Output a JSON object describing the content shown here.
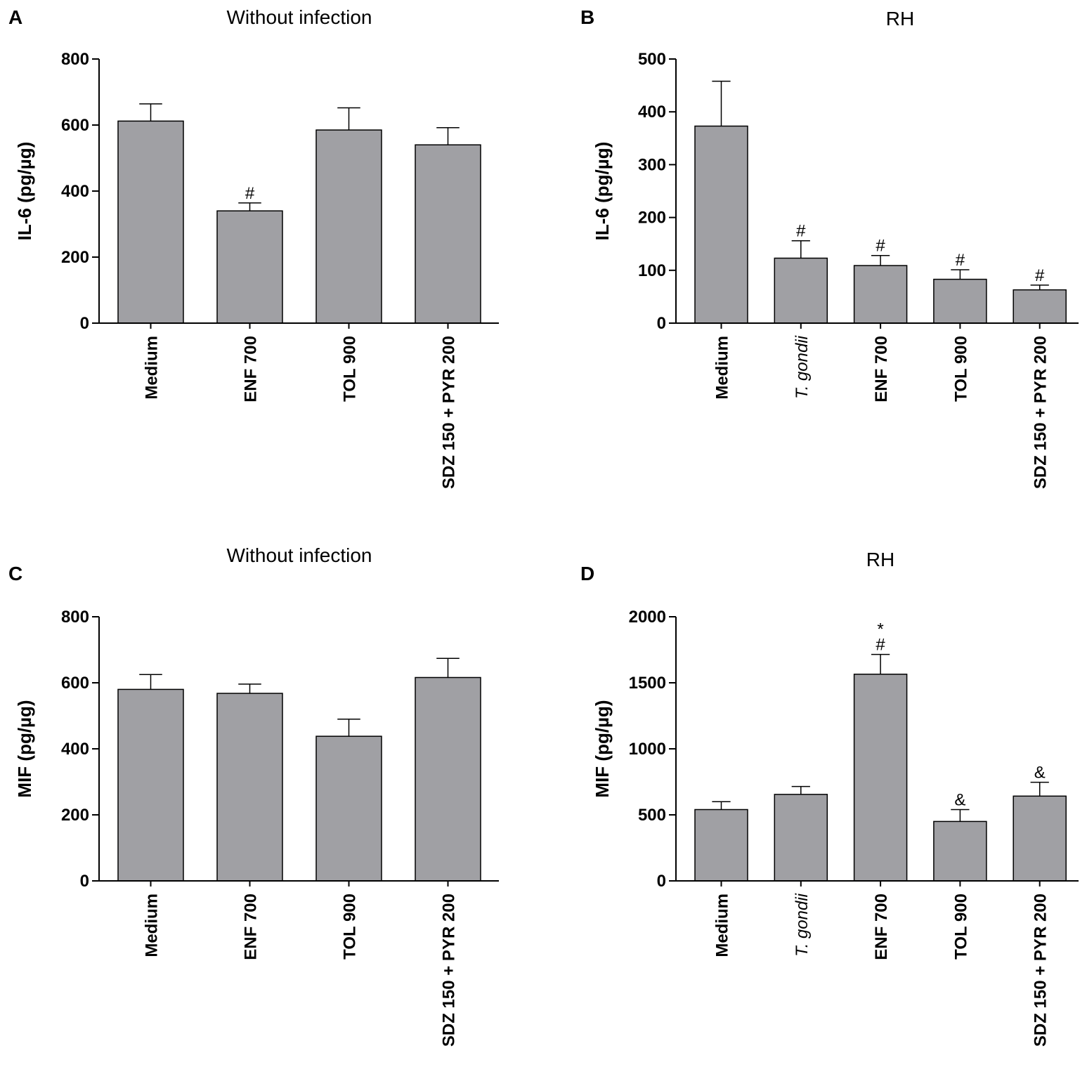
{
  "chart_data": [
    {
      "panel": "A",
      "type": "bar",
      "title": "Without infection",
      "ylabel": "IL-6 (pg/µg)",
      "ylim": [
        0,
        800
      ],
      "yticks": [
        0,
        200,
        400,
        600,
        800
      ],
      "categories": [
        "Medium",
        "ENF 700",
        "TOL 900",
        "SDZ 150 + PYR 200"
      ],
      "italic_categories": [],
      "values": [
        612,
        340,
        585,
        540
      ],
      "errors": [
        52,
        24,
        67,
        52
      ],
      "annotations": [
        "",
        "#",
        "",
        ""
      ],
      "bar_color": "#a0a0a4"
    },
    {
      "panel": "B",
      "type": "bar",
      "title": "RH",
      "ylabel": "IL-6 (pg/µg)",
      "ylim": [
        0,
        500
      ],
      "yticks": [
        0,
        100,
        200,
        300,
        400,
        500
      ],
      "categories": [
        "Medium",
        "T. gondii",
        "ENF 700",
        "TOL 900",
        "SDZ 150 + PYR 200"
      ],
      "italic_categories": [
        1
      ],
      "values": [
        373,
        123,
        109,
        83,
        63
      ],
      "errors": [
        85,
        33,
        19,
        18,
        9
      ],
      "annotations": [
        "",
        "#",
        "#",
        "#",
        "#"
      ],
      "bar_color": "#a0a0a4"
    },
    {
      "panel": "C",
      "type": "bar",
      "title": "Without infection",
      "ylabel": "MIF (pg/µg)",
      "ylim": [
        0,
        800
      ],
      "yticks": [
        0,
        200,
        400,
        600,
        800
      ],
      "categories": [
        "Medium",
        "ENF 700",
        "TOL 900",
        "SDZ 150 + PYR 200"
      ],
      "italic_categories": [],
      "values": [
        580,
        568,
        438,
        616
      ],
      "errors": [
        45,
        28,
        52,
        58
      ],
      "annotations": [
        "",
        "",
        "",
        ""
      ],
      "bar_color": "#a0a0a4"
    },
    {
      "panel": "D",
      "type": "bar",
      "title": "RH",
      "ylabel": "MIF (pg/µg)",
      "ylim": [
        0,
        2000
      ],
      "yticks": [
        0,
        500,
        1000,
        1500,
        2000
      ],
      "categories": [
        "Medium",
        "T. gondii",
        "ENF 700",
        "TOL 900",
        "SDZ 150 + PYR 200"
      ],
      "italic_categories": [
        1
      ],
      "values": [
        540,
        655,
        1565,
        450,
        642
      ],
      "errors": [
        60,
        60,
        150,
        90,
        105
      ],
      "annotations": [
        "",
        "",
        "*\n#",
        "&",
        "&"
      ],
      "bar_color": "#a0a0a4"
    }
  ]
}
